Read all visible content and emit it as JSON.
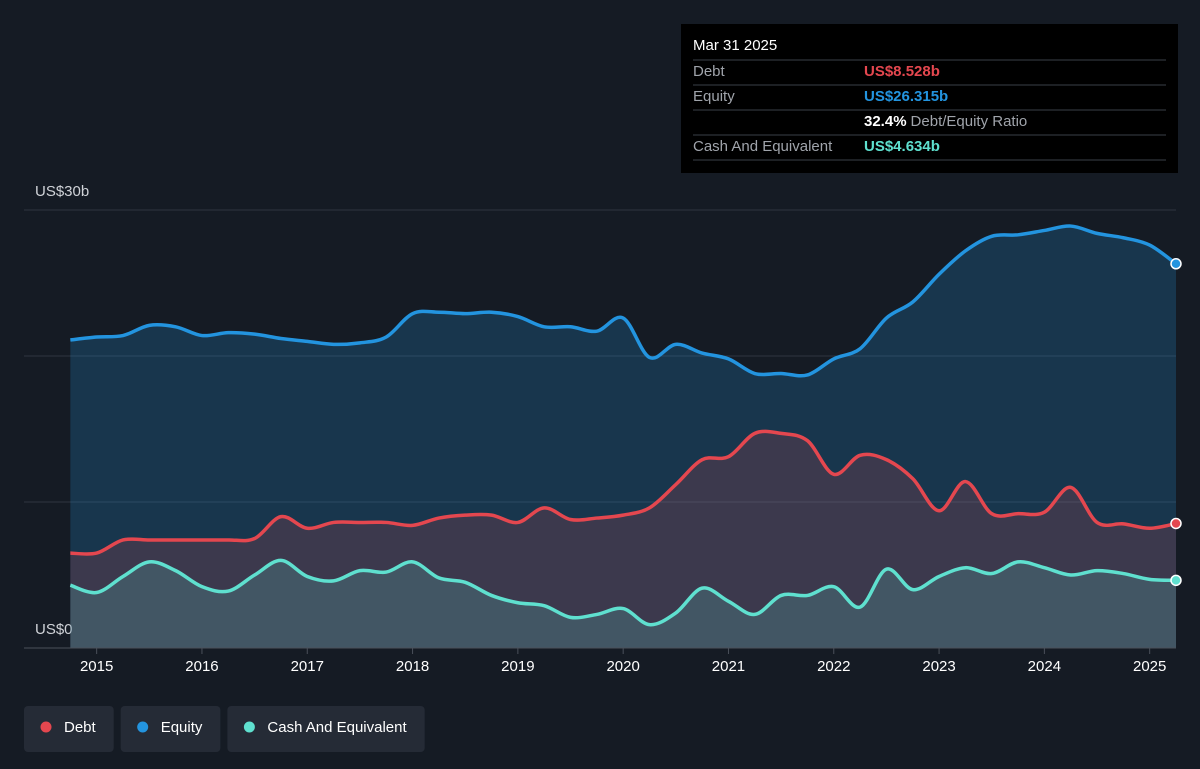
{
  "chart_data": {
    "type": "area",
    "x": [
      2014.75,
      2015,
      2015.25,
      2015.5,
      2015.75,
      2016,
      2016.25,
      2016.5,
      2016.75,
      2017,
      2017.25,
      2017.5,
      2017.75,
      2018,
      2018.25,
      2018.5,
      2018.75,
      2019,
      2019.25,
      2019.5,
      2019.75,
      2020,
      2020.25,
      2020.5,
      2020.75,
      2021,
      2021.25,
      2021.5,
      2021.75,
      2022,
      2022.25,
      2022.5,
      2022.75,
      2023,
      2023.25,
      2023.5,
      2023.75,
      2024,
      2024.25,
      2024.5,
      2024.75,
      2025,
      2025.25
    ],
    "series": [
      {
        "name": "Debt",
        "color": "#e4474f",
        "values": [
          6.5,
          6.5,
          7.4,
          7.4,
          7.4,
          7.4,
          7.4,
          7.5,
          9.0,
          8.2,
          8.6,
          8.6,
          8.6,
          8.4,
          8.9,
          9.1,
          9.1,
          8.6,
          9.6,
          8.8,
          8.9,
          9.1,
          9.6,
          11.2,
          12.9,
          13.1,
          14.7,
          14.7,
          14.2,
          11.9,
          13.2,
          12.9,
          11.6,
          9.4,
          11.4,
          9.2,
          9.2,
          9.3,
          11.0,
          8.6,
          8.5,
          8.2,
          8.528
        ]
      },
      {
        "name": "Equity",
        "color": "#2394df",
        "values": [
          21.1,
          21.3,
          21.4,
          22.1,
          22.0,
          21.4,
          21.6,
          21.5,
          21.2,
          21.0,
          20.8,
          20.9,
          21.3,
          22.9,
          23.0,
          22.9,
          23.0,
          22.7,
          22.0,
          22.0,
          21.7,
          22.6,
          19.9,
          20.8,
          20.2,
          19.8,
          18.8,
          18.8,
          18.7,
          19.8,
          20.5,
          22.6,
          23.7,
          25.6,
          27.2,
          28.2,
          28.3,
          28.6,
          28.9,
          28.4,
          28.1,
          27.6,
          26.315
        ]
      },
      {
        "name": "Cash And Equivalent",
        "color": "#5fe0cf",
        "values": [
          4.3,
          3.8,
          4.9,
          5.9,
          5.3,
          4.2,
          3.9,
          5.0,
          6.0,
          4.9,
          4.6,
          5.3,
          5.2,
          5.9,
          4.8,
          4.5,
          3.6,
          3.1,
          2.9,
          2.1,
          2.3,
          2.7,
          1.6,
          2.4,
          4.1,
          3.2,
          2.3,
          3.6,
          3.6,
          4.2,
          2.8,
          5.4,
          4.0,
          4.9,
          5.5,
          5.1,
          5.9,
          5.5,
          5.0,
          5.3,
          5.1,
          4.7,
          4.634
        ]
      }
    ],
    "xlim": [
      2014.31,
      2025.25
    ],
    "xticks": [
      2015,
      2016,
      2017,
      2018,
      2019,
      2020,
      2021,
      2022,
      2023,
      2024,
      2025
    ],
    "ylim": [
      0,
      30
    ],
    "yticks": [
      {
        "value": 0,
        "label": "US$0"
      },
      {
        "value": 30,
        "label": "US$30b"
      }
    ],
    "ygrid": [
      10,
      20,
      30
    ],
    "tooltip": {
      "date": "Mar 31 2025",
      "rows": [
        {
          "label": "Debt",
          "value": "US$8.528b"
        },
        {
          "label": "Equity",
          "value": "US$26.315b"
        }
      ],
      "ratio": {
        "value": "32.4%",
        "label": "Debt/Equity Ratio"
      },
      "last_row": {
        "label": "Cash And Equivalent",
        "value": "US$4.634b"
      }
    }
  }
}
